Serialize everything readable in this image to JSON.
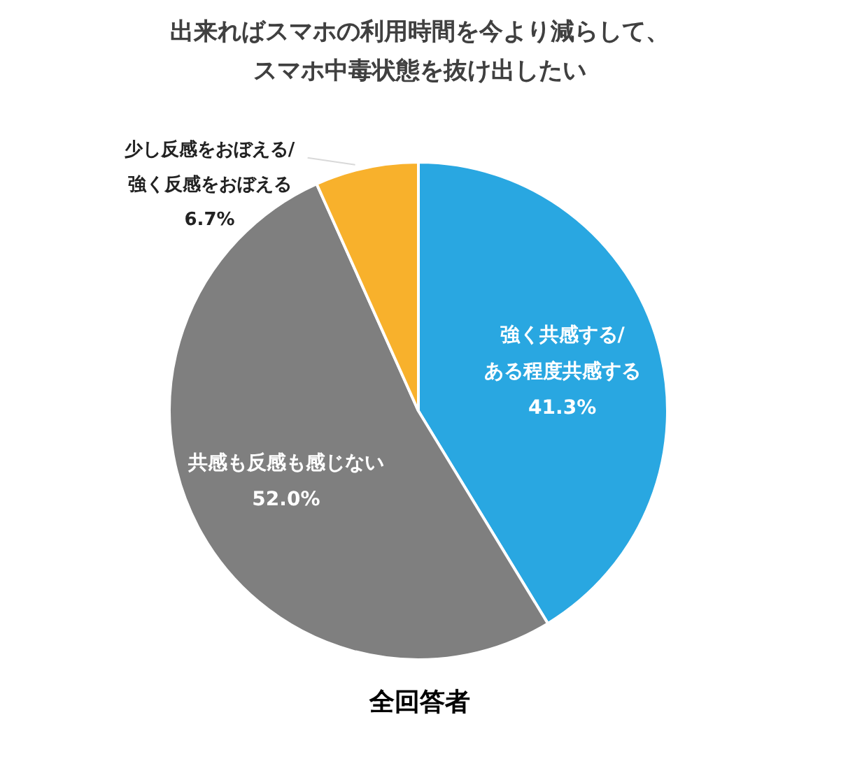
{
  "chart_data": {
    "type": "pie",
    "title": "出来ればスマホの利用時間を今より減らして、スマホ中毒状態を抜け出したい",
    "categories": [
      "強く共感する/ある程度共感する",
      "共感も反感も感じない",
      "少し反感をおぼえる/強く反感をおぼえる"
    ],
    "values": [
      41.3,
      52.0,
      6.7
    ],
    "colors": [
      "#29a7e1",
      "#7f7f7f",
      "#f8b12c"
    ],
    "value_labels": [
      "41.3%",
      "52.0%",
      "6.7%"
    ],
    "annotations": [
      "全回答者"
    ],
    "legend": false
  }
}
